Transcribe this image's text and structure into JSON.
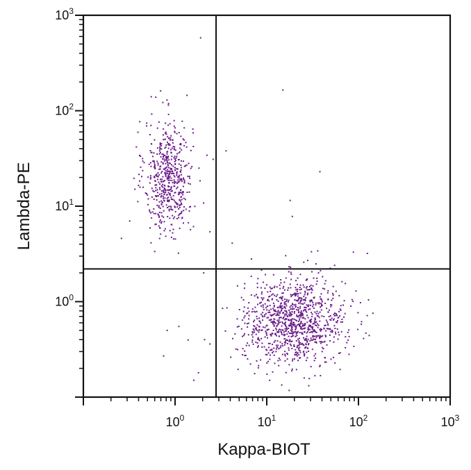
{
  "chart_data": {
    "type": "scatter",
    "title": "",
    "xlabel": "Kappa-BIOT",
    "ylabel": "Lambda-PE",
    "xscale": "log",
    "yscale": "log",
    "xlim": [
      0.1,
      1000
    ],
    "ylim": [
      0.1,
      1000
    ],
    "grid": false,
    "x_tick_labels": [
      {
        "value": 1,
        "base": "10",
        "exp": "0"
      },
      {
        "value": 10,
        "base": "10",
        "exp": "1"
      },
      {
        "value": 100,
        "base": "10",
        "exp": "2"
      },
      {
        "value": 1000,
        "base": "10",
        "exp": "3"
      }
    ],
    "y_tick_labels": [
      {
        "value": 1,
        "base": "10",
        "exp": "0"
      },
      {
        "value": 10,
        "base": "10",
        "exp": "1"
      },
      {
        "value": 100,
        "base": "10",
        "exp": "2"
      },
      {
        "value": 1000,
        "base": "10",
        "exp": "3"
      }
    ],
    "quadrant_gates": {
      "x": 2.8,
      "y": 2.2
    },
    "point_color": "#6a1b8a",
    "populations": [
      {
        "x_center": 0.85,
        "y_center": 20,
        "x_spread_log10": 0.13,
        "y_spread_log10": 0.3,
        "count": 560
      },
      {
        "x_center": 20,
        "y_center": 0.62,
        "x_spread_log10": 0.28,
        "y_spread_log10": 0.22,
        "count": 1050
      }
    ],
    "outliers": [
      {
        "x": 1.9,
        "y": 580
      },
      {
        "x": 15,
        "y": 165
      },
      {
        "x": 0.55,
        "y": 140
      },
      {
        "x": 1.35,
        "y": 145
      },
      {
        "x": 38,
        "y": 23
      },
      {
        "x": 18,
        "y": 11.5
      },
      {
        "x": 19,
        "y": 7.8
      },
      {
        "x": 4.2,
        "y": 4.1
      },
      {
        "x": 3.6,
        "y": 38
      },
      {
        "x": 2.6,
        "y": 31
      },
      {
        "x": 36,
        "y": 3.4
      },
      {
        "x": 28,
        "y": 2.7
      },
      {
        "x": 55,
        "y": 2.4
      },
      {
        "x": 125,
        "y": 3.2
      },
      {
        "x": 88,
        "y": 3.3
      },
      {
        "x": 6.8,
        "y": 2.8
      },
      {
        "x": 2.4,
        "y": 5.4
      },
      {
        "x": 0.32,
        "y": 7
      },
      {
        "x": 0.82,
        "y": 0.5
      },
      {
        "x": 0.75,
        "y": 0.27
      },
      {
        "x": 1.8,
        "y": 0.18
      },
      {
        "x": 2.1,
        "y": 0.4
      },
      {
        "x": 2.4,
        "y": 0.36
      },
      {
        "x": 3.3,
        "y": 0.85
      },
      {
        "x": 1.1,
        "y": 0.55
      },
      {
        "x": 0.26,
        "y": 4.6
      },
      {
        "x": 2.05,
        "y": 2.0
      }
    ]
  }
}
